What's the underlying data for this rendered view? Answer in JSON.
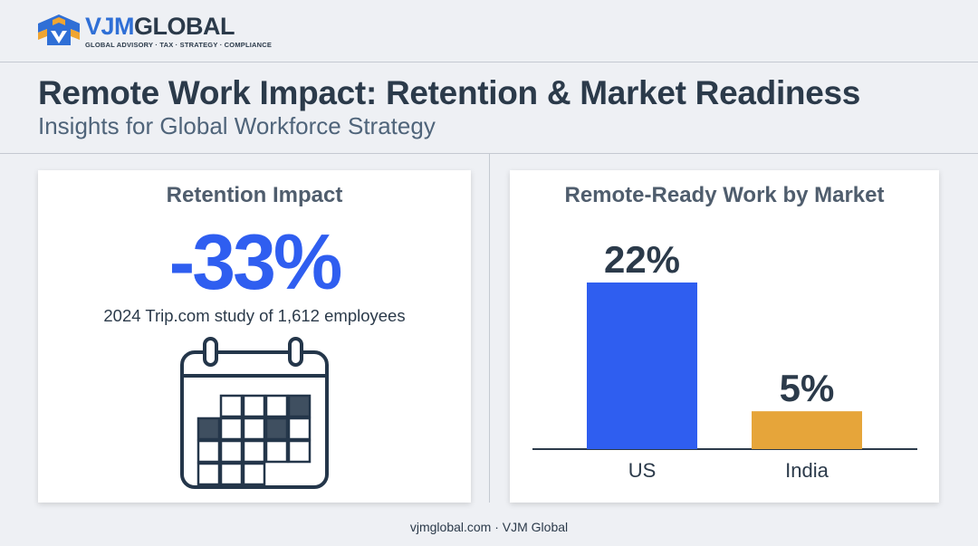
{
  "brand": {
    "name_part1": "VJM",
    "name_part2": "GLOBAL",
    "tagline": "GLOBAL ADVISORY · TAX · STRATEGY · COMPLIANCE",
    "colors": {
      "primary": "#2f6fd6",
      "accent": "#f0a531",
      "dark": "#2b3a4a"
    }
  },
  "header": {
    "title": "Remote Work Impact: Retention & Market Readiness",
    "subtitle": "Insights for Global Workforce Strategy"
  },
  "retention": {
    "title": "Retention Impact",
    "value": "-33%",
    "caption": "2024 Trip.com study of 1,612 employees",
    "icon": "calendar-icon"
  },
  "footer": {
    "text": "vjmglobal.com · VJM Global"
  },
  "chart_data": {
    "type": "bar",
    "title": "Remote-Ready Work by Market",
    "categories": [
      "US",
      "India"
    ],
    "values": [
      22,
      5
    ],
    "value_labels": [
      "22%",
      "5%"
    ],
    "colors": [
      "#2f5ef0",
      "#e6a53a"
    ],
    "ylim": [
      0,
      22
    ],
    "grid": false,
    "xlabel": "",
    "ylabel": ""
  }
}
